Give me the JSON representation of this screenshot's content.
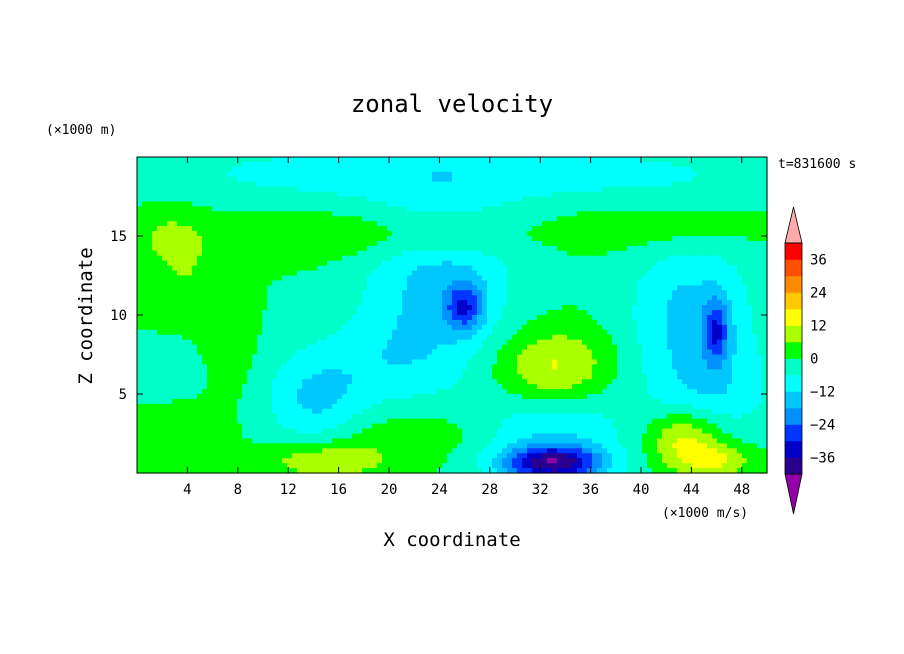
{
  "chart_data": {
    "type": "heatmap",
    "title": "zonal velocity",
    "xlabel": "X coordinate",
    "ylabel": "Z coordinate",
    "y_unit_label": "(×1000 m)",
    "x_unit_label": "(×1000 m/s)",
    "time_label": "t=831600 s",
    "xlim": [
      0,
      50
    ],
    "ylim": [
      0,
      20
    ],
    "x_ticks": [
      "4",
      "8",
      "12",
      "16",
      "20",
      "24",
      "28",
      "32",
      "36",
      "40",
      "44",
      "48"
    ],
    "y_ticks": [
      "5",
      "10",
      "15"
    ],
    "colorbar": {
      "ticks": [
        "36",
        "24",
        "12",
        "0",
        "−12",
        "−24",
        "−36"
      ],
      "levels": [
        -42,
        -36,
        -30,
        -24,
        -18,
        -12,
        -6,
        0,
        6,
        12,
        18,
        24,
        30,
        36,
        42
      ],
      "colors": [
        "#9400a8",
        "#2a008f",
        "#0000c8",
        "#0036ff",
        "#0090ff",
        "#00c8ff",
        "#00ffff",
        "#00ffc8",
        "#00ff00",
        "#aaff00",
        "#ffff00",
        "#ffc800",
        "#ff8c00",
        "#ff5000",
        "#ff0000",
        "#ffaaaa"
      ]
    },
    "background_value": 0,
    "features": [
      {
        "x": 33,
        "z": 0.6,
        "value": -36,
        "sx": 4,
        "sz": 1.1
      },
      {
        "x": 33,
        "z": 2.8,
        "value": -12,
        "sx": 6,
        "sz": 3
      },
      {
        "x": 33,
        "z": 6.5,
        "value": 15,
        "sx": 4.5,
        "sz": 2.5
      },
      {
        "x": 15,
        "z": 0.8,
        "value": 12,
        "sx": 5,
        "sz": 1.2
      },
      {
        "x": 24,
        "z": 12,
        "value": -14,
        "sx": 6,
        "sz": 5
      },
      {
        "x": 26,
        "z": 10.5,
        "value": -20,
        "sx": 1.5,
        "sz": 1.5
      },
      {
        "x": 44,
        "z": 10,
        "value": -14,
        "sx": 5,
        "sz": 5
      },
      {
        "x": 46,
        "z": 9,
        "value": -20,
        "sx": 1,
        "sz": 2
      },
      {
        "x": 14,
        "z": 4.6,
        "value": -12,
        "sx": 4,
        "sz": 3
      },
      {
        "x": 43.5,
        "z": 2.2,
        "value": 16,
        "sx": 3,
        "sz": 1.8
      },
      {
        "x": 46,
        "z": 0.8,
        "value": 12,
        "sx": 3,
        "sz": 1
      },
      {
        "x": 25,
        "z": 19,
        "value": -10,
        "sx": 25,
        "sz": 2
      },
      {
        "x": 2.5,
        "z": 15,
        "value": 6,
        "sx": 3,
        "sz": 2
      },
      {
        "x": 15,
        "z": 15,
        "value": 6,
        "sx": 8,
        "sz": 1.5
      },
      {
        "x": 25,
        "z": 15,
        "value": 7,
        "sx": 5,
        "sz": 1.2
      },
      {
        "x": 42,
        "z": 15.5,
        "value": 6,
        "sx": 8,
        "sz": 1.5
      },
      {
        "x": 7,
        "z": 8,
        "value": 6,
        "sx": 2,
        "sz": 3
      },
      {
        "x": 4,
        "z": 3.2,
        "value": 5,
        "sx": 3,
        "sz": 1.5
      },
      {
        "x": 4,
        "z": 12,
        "value": 5,
        "sx": 3,
        "sz": 3
      },
      {
        "x": 22,
        "z": 2.5,
        "value": 5,
        "sx": 6,
        "sz": 1.5
      },
      {
        "x": 3,
        "z": 6.5,
        "value": -5,
        "sx": 3,
        "sz": 2
      },
      {
        "x": 20,
        "z": 7,
        "value": -8,
        "sx": 6,
        "sz": 3
      },
      {
        "x": 46,
        "z": 5,
        "value": -8,
        "sx": 5,
        "sz": 3
      }
    ]
  }
}
